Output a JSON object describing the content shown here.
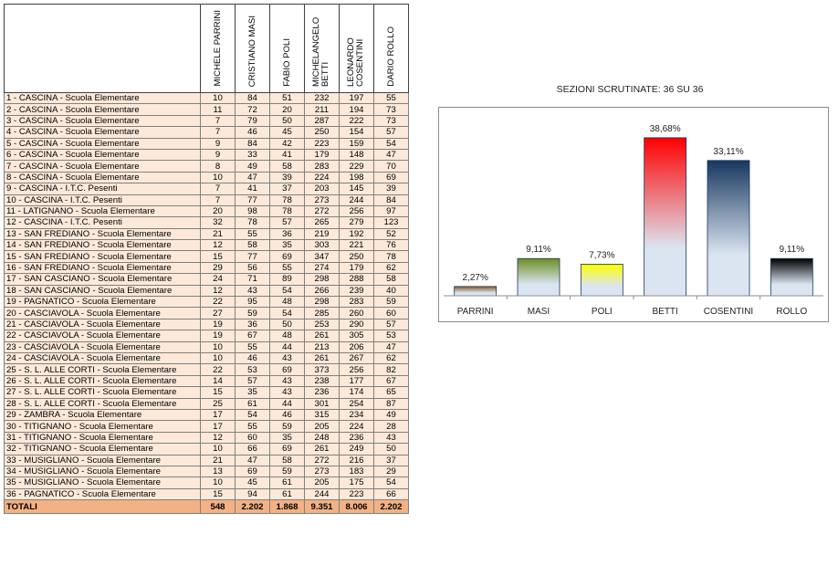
{
  "table": {
    "headers": [
      "MICHELE PARRINI",
      "CRISTIANO MASI",
      "FABIO POLI",
      "MICHELANGELO BETTI",
      "LEONARDO COSENTINI",
      "DARIO ROLLO"
    ],
    "rows": [
      {
        "name": "1 - CASCINA - Scuola Elementare",
        "v": [
          "10",
          "84",
          "51",
          "232",
          "197",
          "55"
        ]
      },
      {
        "name": "2 - CASCINA - Scuola Elementare",
        "v": [
          "11",
          "72",
          "20",
          "211",
          "194",
          "73"
        ]
      },
      {
        "name": "3 - CASCINA - Scuola Elementare",
        "v": [
          "7",
          "79",
          "50",
          "287",
          "222",
          "73"
        ]
      },
      {
        "name": "4 - CASCINA - Scuola Elementare",
        "v": [
          "7",
          "46",
          "45",
          "250",
          "154",
          "57"
        ]
      },
      {
        "name": "5 - CASCINA - Scuola Elementare",
        "v": [
          "9",
          "84",
          "42",
          "223",
          "159",
          "54"
        ]
      },
      {
        "name": "6 - CASCINA - Scuola Elementare",
        "v": [
          "9",
          "33",
          "41",
          "179",
          "148",
          "47"
        ]
      },
      {
        "name": "7 - CASCINA - Scuola Elementare",
        "v": [
          "8",
          "49",
          "58",
          "283",
          "229",
          "70"
        ]
      },
      {
        "name": "8 - CASCINA - Scuola Elementare",
        "v": [
          "10",
          "47",
          "39",
          "224",
          "198",
          "69"
        ]
      },
      {
        "name": "9 - CASCINA - I.T.C. Pesenti",
        "v": [
          "7",
          "41",
          "37",
          "203",
          "145",
          "39"
        ]
      },
      {
        "name": "10 - CASCINA - I.T.C. Pesenti",
        "v": [
          "7",
          "77",
          "78",
          "273",
          "244",
          "84"
        ]
      },
      {
        "name": "11 - LATIGNANO - Scuola Elementare",
        "v": [
          "20",
          "98",
          "78",
          "272",
          "256",
          "97"
        ]
      },
      {
        "name": "12 - CASCINA - I.T.C. Pesenti",
        "v": [
          "32",
          "78",
          "57",
          "265",
          "279",
          "123"
        ]
      },
      {
        "name": "13 - SAN FREDIANO - Scuola Elementare",
        "v": [
          "21",
          "55",
          "36",
          "219",
          "192",
          "52"
        ]
      },
      {
        "name": "14 - SAN FREDIANO - Scuola Elementare",
        "v": [
          "12",
          "58",
          "35",
          "303",
          "221",
          "76"
        ]
      },
      {
        "name": "15 - SAN FREDIANO - Scuola Elementare",
        "v": [
          "15",
          "77",
          "69",
          "347",
          "250",
          "78"
        ]
      },
      {
        "name": "16 - SAN FREDIANO - Scuola Elementare",
        "v": [
          "29",
          "56",
          "55",
          "274",
          "179",
          "62"
        ]
      },
      {
        "name": "17 - SAN CASCIANO - Scuola Elementare",
        "v": [
          "24",
          "71",
          "89",
          "298",
          "288",
          "58"
        ]
      },
      {
        "name": "18 - SAN CASCIANO - Scuola Elementare",
        "v": [
          "12",
          "43",
          "54",
          "266",
          "239",
          "40"
        ]
      },
      {
        "name": "19 - PAGNATICO - Scuola Elementare",
        "v": [
          "22",
          "95",
          "48",
          "298",
          "283",
          "59"
        ]
      },
      {
        "name": "20 - CASCIAVOLA - Scuola Elementare",
        "v": [
          "27",
          "59",
          "54",
          "285",
          "260",
          "60"
        ]
      },
      {
        "name": "21 - CASCIAVOLA - Scuola Elementare",
        "v": [
          "19",
          "36",
          "50",
          "253",
          "290",
          "57"
        ]
      },
      {
        "name": "22 - CASCIAVOLA - Scuola Elementare",
        "v": [
          "19",
          "67",
          "48",
          "261",
          "305",
          "53"
        ]
      },
      {
        "name": "23 - CASCIAVOLA - Scuola Elementare",
        "v": [
          "10",
          "55",
          "44",
          "213",
          "206",
          "47"
        ]
      },
      {
        "name": "24 - CASCIAVOLA - Scuola Elementare",
        "v": [
          "10",
          "46",
          "43",
          "261",
          "267",
          "62"
        ]
      },
      {
        "name": "25 - S. L. ALLE CORTI - Scuola Elementare",
        "v": [
          "22",
          "53",
          "69",
          "373",
          "256",
          "82"
        ]
      },
      {
        "name": "26 - S. L. ALLE CORTI - Scuola Elementare",
        "v": [
          "14",
          "57",
          "43",
          "238",
          "177",
          "67"
        ]
      },
      {
        "name": "27 - S. L. ALLE CORTI - Scuola Elementare",
        "v": [
          "15",
          "35",
          "43",
          "236",
          "174",
          "65"
        ]
      },
      {
        "name": "28 - S. L. ALLE CORTI - Scuola Elementare",
        "v": [
          "25",
          "61",
          "44",
          "301",
          "254",
          "87"
        ]
      },
      {
        "name": "29 - ZAMBRA - Scuola Elementare",
        "v": [
          "17",
          "54",
          "46",
          "315",
          "234",
          "49"
        ]
      },
      {
        "name": "30 - TITIGNANO - Scuola Elementare",
        "v": [
          "17",
          "55",
          "59",
          "205",
          "224",
          "28"
        ]
      },
      {
        "name": "31 - TITIGNANO - Scuola Elementare",
        "v": [
          "12",
          "60",
          "35",
          "248",
          "236",
          "43"
        ]
      },
      {
        "name": "32 - TITIGNANO - Scuola Elementare",
        "v": [
          "10",
          "66",
          "69",
          "261",
          "249",
          "50"
        ]
      },
      {
        "name": "33 - MUSIGLIANO - Scuola Elementare",
        "v": [
          "21",
          "47",
          "58",
          "272",
          "216",
          "37"
        ]
      },
      {
        "name": "34 - MUSIGLIANO - Scuola Elementare",
        "v": [
          "13",
          "69",
          "59",
          "273",
          "183",
          "29"
        ]
      },
      {
        "name": "35 - MUSIGLIANO - Scuola Elementare",
        "v": [
          "10",
          "45",
          "61",
          "205",
          "175",
          "54"
        ]
      },
      {
        "name": "36 - PAGNATICO - Scuola Elementare",
        "v": [
          "15",
          "94",
          "61",
          "244",
          "223",
          "66"
        ]
      }
    ],
    "totals": {
      "name": "TOTALI",
      "v": [
        "548",
        "2.202",
        "1.868",
        "9.351",
        "8.006",
        "2.202"
      ]
    }
  },
  "subtitle": "SEZIONI SCRUTINATE: 36 SU 36",
  "chart_data": {
    "type": "bar",
    "categories": [
      "PARRINI",
      "MASI",
      "POLI",
      "BETTI",
      "COSENTINI",
      "ROLLO"
    ],
    "values": [
      2.27,
      9.11,
      7.73,
      38.68,
      33.11,
      9.11
    ],
    "labels": [
      "2,27%",
      "9,11%",
      "7,73%",
      "38,68%",
      "33,11%",
      "9,11%"
    ],
    "top_colors": [
      "#8b5a2b",
      "#6b8e23",
      "#ffff00",
      "#ff0000",
      "#17375e",
      "#000000"
    ],
    "bottom_color": "#dbe5f1",
    "ylim": [
      0,
      42
    ],
    "grid": false,
    "legend": "none"
  }
}
